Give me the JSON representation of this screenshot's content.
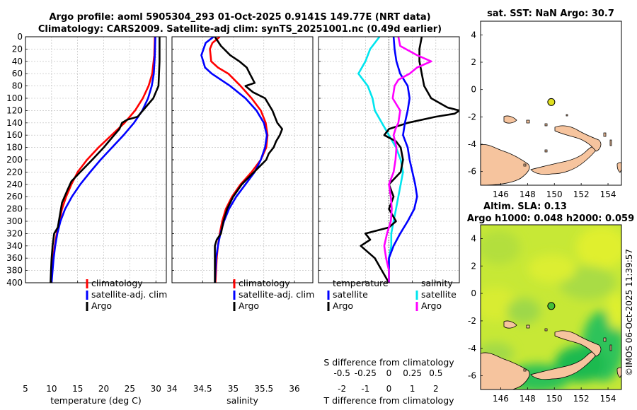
{
  "titles": {
    "line1": "Argo profile: aoml 5905304_293 01-Oct-2025 0.9141S 149.77E (NRT data)",
    "line2": "Climatology: CARS2009. Satellite-adj clim: synTS_20251001.nc (0.49d earlier)",
    "sst": "sat. SST: NaN Argo: 30.7",
    "sla1": "Altim. SLA: 0.13",
    "sla2": "Argo h1000: 0.048 h2000: 0.059",
    "credit": "©IMOS 06-Oct-2025 11:39:57"
  },
  "colors": {
    "climatology": "#ff0000",
    "satellite": "#0000ff",
    "argo": "#000000",
    "salinity_diff": "#ff00ff",
    "temperature_diff": "#00e5ee",
    "land": "#f6c49e",
    "grid": "#b8b8b8"
  },
  "chart_data": [
    {
      "type": "line",
      "name": "temperature",
      "xlabel": "temperature (deg C)",
      "ylabel": "",
      "xlim": [
        5,
        32
      ],
      "ylim": [
        400,
        0
      ],
      "xticks": [
        "5",
        "10",
        "15",
        "20",
        "25",
        "30"
      ],
      "yticks": [
        "0",
        "20",
        "40",
        "60",
        "80",
        "100",
        "120",
        "140",
        "160",
        "180",
        "200",
        "220",
        "240",
        "260",
        "280",
        "300",
        "320",
        "340",
        "360",
        "380",
        "400"
      ],
      "legend": [
        "climatology",
        "satellite-adj. clim",
        "Argo"
      ],
      "series": [
        {
          "name": "climatology",
          "depth": [
            0,
            30,
            60,
            80,
            100,
            120,
            140,
            160,
            180,
            200,
            220,
            240,
            260,
            280,
            300,
            320,
            340,
            360,
            380,
            400
          ],
          "values": [
            29.8,
            29.7,
            29.3,
            28.6,
            27.5,
            26.0,
            24.0,
            21.5,
            19.0,
            16.8,
            15.0,
            13.8,
            12.8,
            12.0,
            11.5,
            11.0,
            10.6,
            10.3,
            10.1,
            9.9
          ]
        },
        {
          "name": "satellite-adj. clim",
          "depth": [
            0,
            30,
            60,
            80,
            100,
            120,
            140,
            160,
            180,
            200,
            220,
            240,
            260,
            280,
            300,
            320,
            340,
            360,
            380,
            400
          ],
          "values": [
            29.9,
            29.8,
            29.6,
            29.2,
            28.5,
            27.4,
            25.8,
            23.8,
            21.6,
            19.4,
            17.4,
            15.5,
            13.9,
            12.6,
            11.7,
            11.1,
            10.7,
            10.4,
            10.2,
            10.0
          ]
        },
        {
          "name": "Argo",
          "depth": [
            0,
            40,
            80,
            100,
            120,
            130,
            135,
            140,
            150,
            160,
            170,
            180,
            200,
            220,
            235,
            250,
            270,
            290,
            310,
            320,
            340,
            360,
            380,
            400
          ],
          "values": [
            30.7,
            30.7,
            30.5,
            29.5,
            27.5,
            26.5,
            24.5,
            23.5,
            23.0,
            22.0,
            21.0,
            20.0,
            17.8,
            15.5,
            13.8,
            13.0,
            12.0,
            11.6,
            11.2,
            10.5,
            10.2,
            10.0,
            9.9,
            9.8
          ]
        }
      ]
    },
    {
      "type": "line",
      "name": "salinity",
      "xlabel": "salinity",
      "ylabel": "",
      "xlim": [
        34,
        36.3
      ],
      "ylim": [
        400,
        0
      ],
      "xticks": [
        "34",
        "34.5",
        "35",
        "35.5",
        "36"
      ],
      "legend": [
        "climatology",
        "satellite-adj. clim",
        "Argo"
      ],
      "series": [
        {
          "name": "climatology",
          "depth": [
            0,
            10,
            20,
            40,
            50,
            60,
            80,
            100,
            120,
            140,
            160,
            180,
            200,
            220,
            240,
            260,
            280,
            300,
            320,
            340,
            360,
            380,
            400
          ],
          "values": [
            34.78,
            34.66,
            34.62,
            34.64,
            34.75,
            34.92,
            35.12,
            35.3,
            35.45,
            35.53,
            35.56,
            35.54,
            35.45,
            35.3,
            35.12,
            34.98,
            34.88,
            34.82,
            34.78,
            34.75,
            34.73,
            34.72,
            34.71
          ]
        },
        {
          "name": "satellite-adj. clim",
          "depth": [
            0,
            10,
            30,
            50,
            60,
            80,
            100,
            120,
            140,
            160,
            180,
            200,
            220,
            240,
            260,
            280,
            300,
            320,
            340,
            360,
            380,
            400
          ],
          "values": [
            34.68,
            34.55,
            34.48,
            34.54,
            34.65,
            34.95,
            35.2,
            35.38,
            35.5,
            35.55,
            35.52,
            35.45,
            35.35,
            35.2,
            35.05,
            34.93,
            34.85,
            34.79,
            34.75,
            34.72,
            34.71,
            34.7
          ]
        },
        {
          "name": "Argo",
          "depth": [
            0,
            15,
            30,
            40,
            50,
            60,
            75,
            80,
            90,
            100,
            120,
            140,
            150,
            160,
            170,
            180,
            190,
            200,
            210,
            220,
            240,
            260,
            280,
            300,
            320,
            330,
            340,
            360,
            380,
            400
          ],
          "values": [
            34.7,
            34.8,
            34.95,
            35.1,
            35.22,
            35.27,
            35.35,
            35.2,
            35.32,
            35.52,
            35.64,
            35.72,
            35.8,
            35.76,
            35.7,
            35.66,
            35.58,
            35.54,
            35.44,
            35.34,
            35.14,
            35.0,
            34.9,
            34.84,
            34.8,
            34.73,
            34.7,
            34.7,
            34.7,
            34.7
          ]
        }
      ]
    },
    {
      "type": "line",
      "name": "differences",
      "xlabel": "T difference from climatology",
      "xlabel_top": "S difference from climatology",
      "xlim": [
        -3,
        3
      ],
      "ylim": [
        400,
        0
      ],
      "xticks": [
        "-2",
        "-1",
        "0",
        "1",
        "2"
      ],
      "xticks_salinity": [
        "-0.5",
        "-0.25",
        "0",
        "0.25",
        "0.5"
      ],
      "legend_left": [
        "temperature",
        "satellite",
        "Argo"
      ],
      "legend_right": [
        "salinity",
        "satellite",
        "Argo"
      ],
      "series": [
        {
          "name": "temperature satellite",
          "depth": [
            0,
            20,
            40,
            60,
            80,
            100,
            120,
            140,
            160,
            180,
            200,
            220,
            240,
            260,
            280,
            300,
            320,
            340,
            360,
            380,
            400
          ],
          "values": [
            -0.4,
            -0.8,
            -1.0,
            -1.3,
            -0.9,
            -0.7,
            -0.6,
            -0.3,
            0.0,
            0.3,
            0.5,
            0.6,
            0.5,
            0.4,
            0.3,
            0.2,
            0.1,
            0.1,
            0.0,
            0.0,
            0.0
          ]
        },
        {
          "name": "temperature Argo",
          "depth": [
            0,
            20,
            40,
            60,
            80,
            100,
            115,
            120,
            125,
            130,
            140,
            150,
            160,
            170,
            180,
            200,
            220,
            240,
            260,
            280,
            300,
            310,
            320,
            330,
            340,
            360,
            380,
            400
          ],
          "values": [
            1.4,
            1.3,
            1.3,
            1.4,
            1.5,
            1.8,
            2.5,
            3.0,
            2.8,
            2.0,
            0.8,
            0.0,
            -0.2,
            0.3,
            0.5,
            0.6,
            0.5,
            0.0,
            0.2,
            0.0,
            0.3,
            0.0,
            -1.0,
            -0.8,
            -1.2,
            -0.6,
            -0.3,
            0.0
          ]
        },
        {
          "name": "salinity satellite",
          "depth": [
            0,
            20,
            40,
            60,
            80,
            100,
            120,
            140,
            160,
            180,
            200,
            220,
            240,
            260,
            280,
            300,
            320,
            340,
            360,
            380,
            400
          ],
          "values": [
            0.05,
            0.06,
            0.08,
            0.12,
            0.2,
            0.22,
            0.2,
            0.17,
            0.15,
            0.2,
            0.22,
            0.25,
            0.28,
            0.3,
            0.27,
            0.2,
            0.12,
            0.05,
            0.0,
            0.0,
            0.0
          ]
        },
        {
          "name": "salinity Argo",
          "depth": [
            0,
            15,
            30,
            40,
            50,
            60,
            70,
            80,
            100,
            120,
            140,
            150,
            160,
            180,
            200,
            220,
            240,
            260,
            280,
            300,
            320,
            340,
            360,
            380,
            400
          ],
          "values": [
            0.1,
            0.12,
            0.3,
            0.45,
            0.3,
            0.22,
            0.1,
            0.06,
            0.04,
            0.12,
            0.1,
            0.07,
            0.05,
            0.08,
            0.07,
            0.05,
            0.0,
            0.02,
            0.03,
            0.02,
            -0.02,
            -0.05,
            -0.03,
            0.0,
            0.0
          ]
        }
      ]
    },
    {
      "type": "scatter",
      "name": "sst-map",
      "xlim": [
        144.5,
        155
      ],
      "ylim": [
        -7,
        5
      ],
      "xticks": [
        "146",
        "148",
        "150",
        "152",
        "154"
      ],
      "yticks": [
        "4",
        "2",
        "0",
        "-2",
        "-4",
        "-6"
      ],
      "points": [
        {
          "x": 149.77,
          "y": -0.9141
        }
      ]
    },
    {
      "type": "heatmap",
      "name": "sla-map",
      "xlim": [
        144.5,
        155
      ],
      "ylim": [
        -7,
        5
      ],
      "xticks": [
        "146",
        "148",
        "150",
        "152",
        "154"
      ],
      "yticks": [
        "4",
        "2",
        "0",
        "-2",
        "-4",
        "-6"
      ],
      "points": [
        {
          "x": 149.77,
          "y": -0.9141
        }
      ]
    }
  ]
}
